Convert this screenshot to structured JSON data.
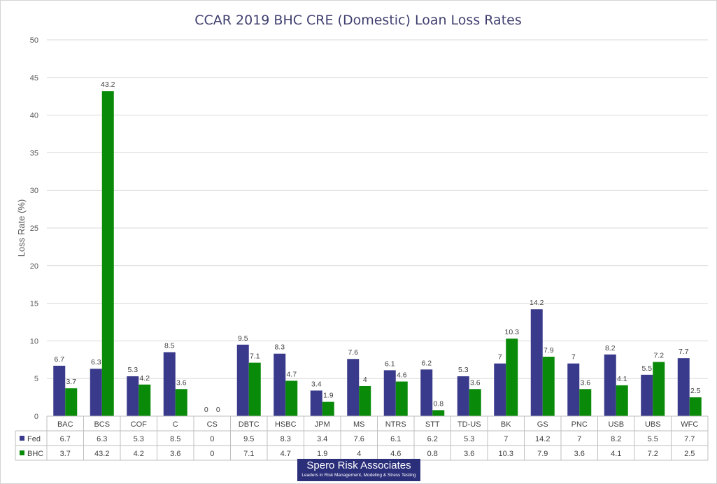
{
  "chart_data": {
    "type": "bar",
    "title": "CCAR 2019 BHC CRE (Domestic) Loan Loss Rates",
    "xlabel": "",
    "ylabel": "Loss Rate (%)",
    "ylim": [
      0,
      50
    ],
    "yticks": [
      0,
      5,
      10,
      15,
      20,
      25,
      30,
      35,
      40,
      45,
      50
    ],
    "grid": true,
    "legend": "data table",
    "categories": [
      "BAC",
      "BCS",
      "COF",
      "C",
      "CS",
      "DBTC",
      "HSBC",
      "JPM",
      "MS",
      "NTRS",
      "STT",
      "TD-US",
      "BK",
      "GS",
      "PNC",
      "USB",
      "UBS",
      "WFC"
    ],
    "series": [
      {
        "name": "Fed",
        "color": "#3a3a8c",
        "values": [
          6.7,
          6.3,
          5.3,
          8.5,
          0,
          9.5,
          8.3,
          3.4,
          7.6,
          6.1,
          6.2,
          5.3,
          7,
          14.2,
          7,
          8.2,
          5.5,
          7.7
        ]
      },
      {
        "name": "BHC",
        "color": "#098a09",
        "values": [
          3.7,
          43.2,
          4.2,
          3.6,
          0,
          7.1,
          4.7,
          1.9,
          4,
          4.6,
          0.8,
          3.6,
          10.3,
          7.9,
          3.6,
          4.1,
          7.2,
          2.5
        ]
      }
    ]
  },
  "logo": {
    "name": "Spero Risk Associates",
    "tagline": "Leaders in Risk Management, Modeling & Stress Testing"
  }
}
